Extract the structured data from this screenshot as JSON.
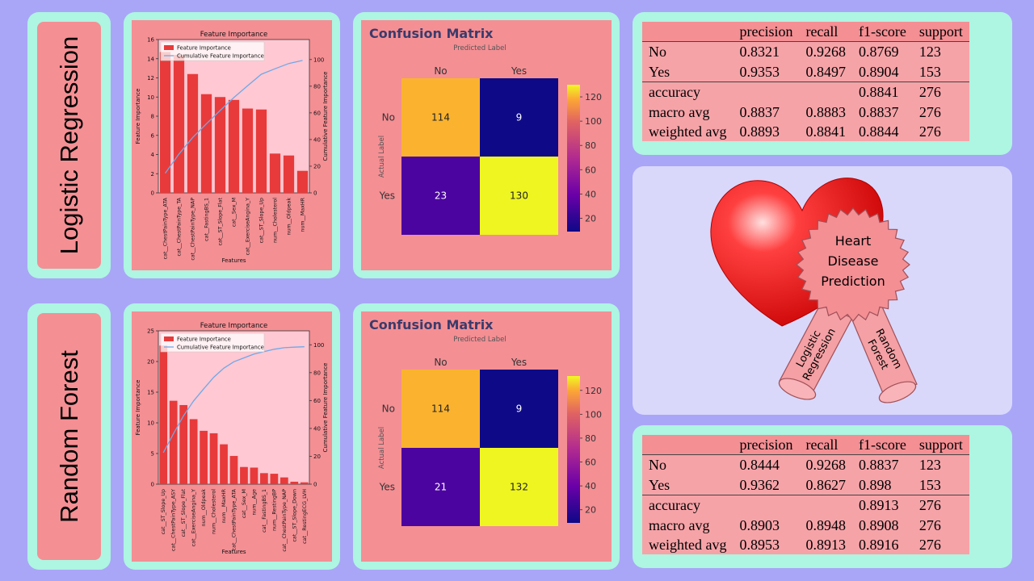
{
  "rows": [
    {
      "label": "Logistic Regression",
      "feature_chart": {
        "type": "bar",
        "title": "Feature Importance",
        "xlabel": "Features",
        "ylabel": "Feature Importance",
        "y2label": "Cumulative Feature Importance",
        "legend": [
          "Feature Importance",
          "Cumulative Feature Importance"
        ],
        "categories": [
          "cat__ChestPainType_ATA",
          "cat__ChestPainType_TA",
          "cat__ChestPainType_NAP",
          "cat__FastingBS_1",
          "cat__ST_Slope_Flat",
          "cat__Sex_M",
          "cat__ExerciseAngina_Y",
          "cat__ST_Slope_Up",
          "num__Cholesterol",
          "num__Oldpeak",
          "num__MaxHR"
        ],
        "values": [
          14.7,
          14.4,
          12.4,
          10.3,
          10.0,
          9.7,
          8.8,
          8.7,
          4.1,
          3.9,
          2.3
        ],
        "cumulative": [
          14.7,
          29.1,
          41.5,
          51.8,
          61.8,
          71.5,
          80.3,
          89.0,
          93.1,
          97.0,
          99.3
        ],
        "ylim": [
          0,
          16
        ],
        "yticks": [
          0,
          2,
          4,
          6,
          8,
          10,
          12,
          14,
          16
        ],
        "y2lim": [
          0,
          115
        ],
        "y2ticks": [
          0,
          20,
          40,
          60,
          80,
          100
        ],
        "colors": {
          "bar": "#e83a3a",
          "line": "#6fa8e8",
          "plot_bg": "#ffc8d2"
        }
      },
      "confusion": {
        "type": "heatmap",
        "title": "Confusion Matrix",
        "xlabel": "Predicted Label",
        "ylabel": "Actual Label",
        "x": [
          "No",
          "Yes"
        ],
        "y": [
          "No",
          "Yes"
        ],
        "values": [
          [
            114,
            9
          ],
          [
            23,
            130
          ]
        ],
        "cell_colors": [
          [
            "#fbb32f",
            "#0e0a87"
          ],
          [
            "#4c04a0",
            "#eef520"
          ]
        ],
        "cell_text_colors": [
          [
            "#222222",
            "#ffffff"
          ],
          [
            "#ffffff",
            "#222222"
          ]
        ],
        "colorbar_range": [
          9,
          130
        ],
        "colorbar_ticks": [
          20,
          40,
          60,
          80,
          100,
          120
        ]
      },
      "report": {
        "header": [
          "",
          "precision",
          "recall",
          "f1-score",
          "support"
        ],
        "rows": [
          [
            "No",
            "0.8321",
            "0.9268",
            "0.8769",
            "123"
          ],
          [
            "Yes",
            "0.9353",
            "0.8497",
            "0.8904",
            "153"
          ],
          [
            "accuracy",
            "",
            "",
            "0.8841",
            "276"
          ],
          [
            "macro avg",
            "0.8837",
            "0.8883",
            "0.8837",
            "276"
          ],
          [
            "weighted avg",
            "0.8893",
            "0.8841",
            "0.8844",
            "276"
          ]
        ]
      }
    },
    {
      "label": "Random Forest",
      "feature_chart": {
        "type": "bar",
        "title": "Feature Importance",
        "xlabel": "Features",
        "ylabel": "Feature Importance",
        "y2label": "Cumulative Feature Importance",
        "legend": [
          "Feature Importance",
          "Cumulative Feature Importance"
        ],
        "categories": [
          "cat__ST_Slope_Up",
          "cat__ChestPainType_ASY",
          "cat__ST_Slope_Flat",
          "cat__ExerciseAngina_Y",
          "num__Oldpeak",
          "num__Cholesterol",
          "num__MaxHR",
          "cat__ChestPainType_ATA",
          "cat__Sex_M",
          "num__Age",
          "cat__FastingBS_1",
          "num__RestingBP",
          "cat__ChestPainType_NAP",
          "cat__ST_Slope_Down",
          "cat__RestingECG_LVH"
        ],
        "values": [
          22.6,
          13.6,
          12.9,
          10.6,
          8.7,
          8.3,
          6.5,
          4.6,
          2.8,
          2.7,
          1.8,
          1.7,
          1.1,
          0.4,
          0.3
        ],
        "cumulative": [
          22.6,
          36.2,
          49.1,
          59.7,
          68.4,
          76.7,
          83.2,
          87.8,
          90.6,
          93.3,
          95.1,
          96.8,
          97.9,
          98.3,
          98.6
        ],
        "ylim": [
          0,
          25
        ],
        "yticks": [
          0,
          5,
          10,
          15,
          20,
          25
        ],
        "y2lim": [
          0,
          110
        ],
        "y2ticks": [
          0,
          20,
          40,
          60,
          80,
          100
        ],
        "colors": {
          "bar": "#e83a3a",
          "line": "#6fa8e8",
          "plot_bg": "#ffc8d2"
        }
      },
      "confusion": {
        "type": "heatmap",
        "title": "Confusion Matrix",
        "xlabel": "Predicted Label",
        "ylabel": "Actual Label",
        "x": [
          "No",
          "Yes"
        ],
        "y": [
          "No",
          "Yes"
        ],
        "values": [
          [
            114,
            9
          ],
          [
            21,
            132
          ]
        ],
        "cell_colors": [
          [
            "#fbb32f",
            "#0e0a87"
          ],
          [
            "#4c04a0",
            "#eef520"
          ]
        ],
        "cell_text_colors": [
          [
            "#222222",
            "#ffffff"
          ],
          [
            "#ffffff",
            "#222222"
          ]
        ],
        "colorbar_range": [
          9,
          132
        ],
        "colorbar_ticks": [
          20,
          40,
          60,
          80,
          100,
          120
        ]
      },
      "report": {
        "header": [
          "",
          "precision",
          "recall",
          "f1-score",
          "support"
        ],
        "rows": [
          [
            "No",
            "0.8444",
            "0.9268",
            "0.8837",
            "123"
          ],
          [
            "Yes",
            "0.9362",
            "0.8627",
            "0.898",
            "153"
          ],
          [
            "accuracy",
            "",
            "",
            "0.8913",
            "276"
          ],
          [
            "macro avg",
            "0.8903",
            "0.8948",
            "0.8908",
            "276"
          ],
          [
            "weighted avg",
            "0.8953",
            "0.8913",
            "0.8916",
            "276"
          ]
        ]
      }
    }
  ],
  "heart": {
    "badge_lines": [
      "Heart",
      "Disease",
      "Prediction"
    ],
    "ribbon_left": [
      "Logistic",
      "Regression"
    ],
    "ribbon_right": [
      "Random",
      "Forest"
    ],
    "colors": {
      "heart": "#ff1a1a",
      "badge": "#f48f94",
      "ribbon": "#f4a0a4"
    }
  }
}
